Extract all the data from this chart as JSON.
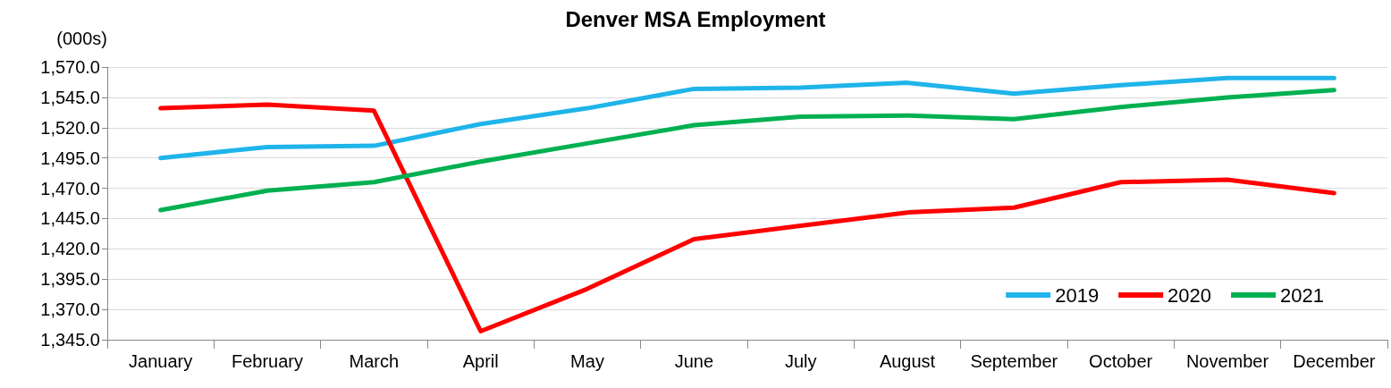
{
  "chart_data": {
    "type": "line",
    "title": "Denver MSA Employment",
    "ylabel": "(000s)",
    "categories": [
      "January",
      "February",
      "March",
      "April",
      "May",
      "June",
      "July",
      "August",
      "September",
      "October",
      "November",
      "December"
    ],
    "series": [
      {
        "name": "2019",
        "color": "#1fb4ea",
        "values": [
          1495,
          1504,
          1505,
          1523,
          1536,
          1552,
          1553,
          1557,
          1548,
          1555,
          1561,
          1561
        ]
      },
      {
        "name": "2020",
        "color": "#ff0000",
        "values": [
          1536,
          1539,
          1534,
          1352,
          1387,
          1428,
          1439,
          1450,
          1454,
          1475,
          1477,
          1466
        ]
      },
      {
        "name": "2021",
        "color": "#00b050",
        "values": [
          1452,
          1468,
          1475,
          1492,
          1507,
          1522,
          1529,
          1530,
          1527,
          1537,
          1545,
          1551
        ]
      }
    ],
    "ylim": [
      1345,
      1570
    ],
    "yticks": [
      {
        "value": 1345,
        "label": "1,345.0"
      },
      {
        "value": 1370,
        "label": "1,370.0"
      },
      {
        "value": 1395,
        "label": "1,395.0"
      },
      {
        "value": 1420,
        "label": "1,420.0"
      },
      {
        "value": 1445,
        "label": "1,445.0"
      },
      {
        "value": 1470,
        "label": "1,470.0"
      },
      {
        "value": 1495,
        "label": "1,495.0"
      },
      {
        "value": 1520,
        "label": "1,520.0"
      },
      {
        "value": 1545,
        "label": "1,545.0"
      },
      {
        "value": 1570,
        "label": "1,570.0"
      }
    ],
    "grid": "y",
    "legend": "bottom right",
    "marker": "none",
    "line_style": "solid"
  }
}
